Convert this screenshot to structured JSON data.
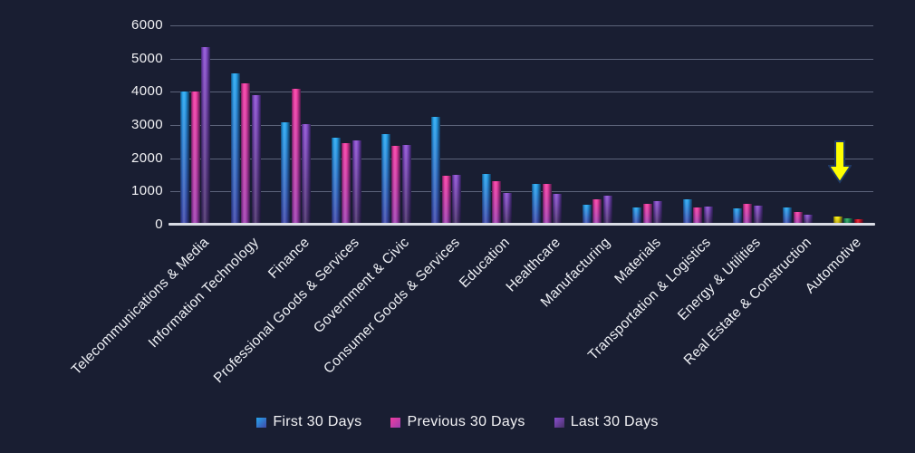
{
  "page": {
    "background_color": "#191e32",
    "gridline_color": "rgba(148,156,182,0.55)",
    "axis_line_color": "#d9dce5",
    "text_color": "#f2f2f5"
  },
  "chart_data": {
    "type": "bar",
    "title": "",
    "xlabel": "",
    "ylabel": "",
    "ylim": [
      0,
      6000
    ],
    "yticks": [
      0,
      1000,
      2000,
      3000,
      4000,
      5000,
      6000
    ],
    "grid": "horizontal",
    "legend_position": "bottom",
    "categories": [
      "Telecommunications & Media",
      "Information Technology",
      "Finance",
      "Professional Goods & Services",
      "Government & Civic",
      "Consumer Goods & Services",
      "Education",
      "Healthcare",
      "Manufacturing",
      "Materials",
      "Transportation & Logistics",
      "Energy & Utilities",
      "Real Estate & Construction",
      "Automotive"
    ],
    "series": [
      {
        "name": "First 30 Days",
        "color_top": "#25a6ee",
        "color_bottom": "#4048a8",
        "values": [
          4000,
          4550,
          3070,
          2610,
          2720,
          3250,
          1530,
          1230,
          600,
          530,
          770,
          480,
          530,
          250
        ]
      },
      {
        "name": "Previous 30 Days",
        "color_top": "#f23ba1",
        "color_bottom": "#9c3fae",
        "values": [
          4000,
          4250,
          4100,
          2450,
          2370,
          1480,
          1300,
          1230,
          760,
          620,
          530,
          640,
          370,
          190
        ]
      },
      {
        "name": "Last 30 Days",
        "color_top": "#8a4ed0",
        "color_bottom": "#473067",
        "values": [
          5350,
          3900,
          3020,
          2550,
          2410,
          1500,
          950,
          930,
          870,
          700,
          550,
          570,
          300,
          160
        ]
      }
    ],
    "special_bar_colors": {
      "category": "Automotive",
      "note": "Automotive bars use highlight colors instead of series colors",
      "colors": [
        {
          "name": "yellow",
          "top": "#fff200",
          "bottom": "#a89410"
        },
        {
          "name": "green",
          "top": "#27a85e",
          "bottom": "#17754b"
        },
        {
          "name": "red",
          "top": "#e81123",
          "bottom": "#9c0d1c"
        }
      ]
    },
    "annotation": {
      "type": "down-arrow",
      "target_category": "Automotive",
      "fill": "#feff00",
      "outline": "#1f3864"
    }
  }
}
